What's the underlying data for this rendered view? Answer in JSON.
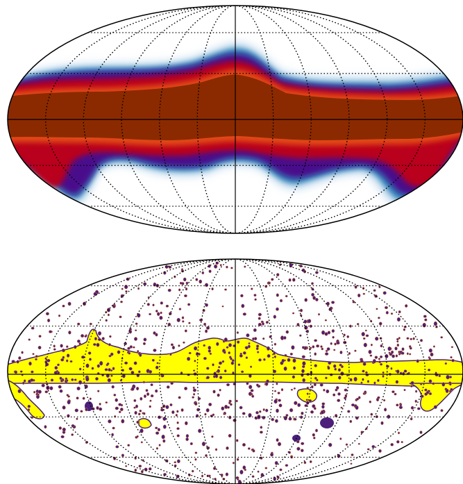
{
  "maps": [
    {
      "name": "smoothed-galactic-plane-map",
      "projection": "mollweide",
      "graticule": {
        "style": "dotted",
        "lon_step_deg": 30,
        "lat_step_deg": 30
      },
      "colors": {
        "outline": "#000000",
        "core": "#8b2a00",
        "core_edge": "#e24a12",
        "red_band": "#b9001b",
        "purple_band": "#4a0c8c",
        "blue_band": "#2f7fb5",
        "light_blue": "#9fc8e6"
      }
    },
    {
      "name": "source-mask-map",
      "projection": "mollweide",
      "graticule": {
        "style": "dotted",
        "lon_step_deg": 30,
        "lat_step_deg": 30
      },
      "colors": {
        "outline": "#000000",
        "mask_fill": "#ffff00",
        "source_dot": "#4b1f7a",
        "source_edge": "#e07a2a"
      }
    }
  ]
}
